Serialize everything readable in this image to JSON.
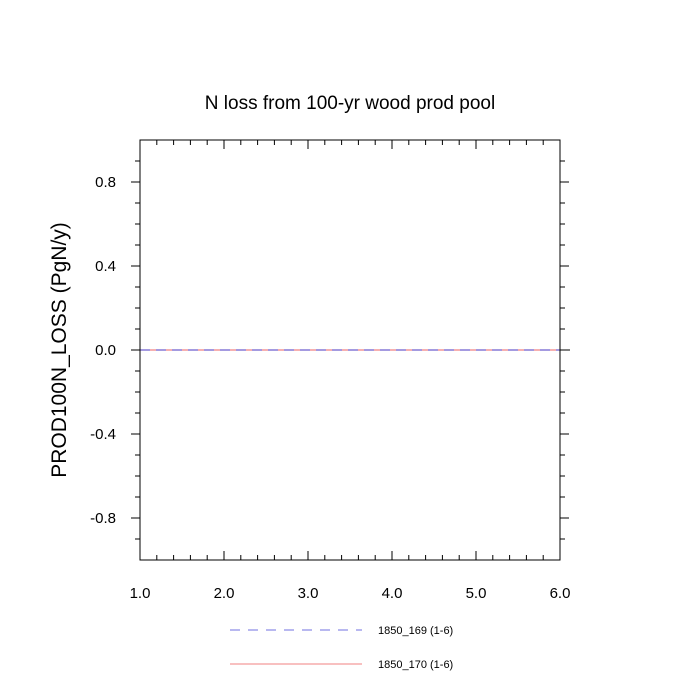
{
  "chart_data": {
    "type": "line",
    "title": "N loss from 100-yr wood prod pool",
    "xlabel": "",
    "ylabel": "PROD100N_LOSS  (PgN/y)",
    "xlim": [
      1.0,
      6.0
    ],
    "ylim": [
      -1.0,
      1.0
    ],
    "x_ticks": [
      1.0,
      2.0,
      3.0,
      4.0,
      5.0,
      6.0
    ],
    "x_tick_labels": [
      "1.0",
      "2.0",
      "3.0",
      "4.0",
      "5.0",
      "6.0"
    ],
    "y_ticks": [
      -0.8,
      -0.4,
      0.0,
      0.4,
      0.8
    ],
    "y_tick_labels": [
      "-0.8",
      "-0.4",
      "0.0",
      "0.4",
      "0.8"
    ],
    "grid": false,
    "legend_position": "bottom",
    "zero_line": true,
    "series": [
      {
        "name": "1850_169 (1-6)",
        "color": "#7070e0",
        "style": "dashed",
        "x": [
          1,
          2,
          3,
          4,
          5,
          6
        ],
        "values": [
          0,
          0,
          0,
          0,
          0,
          0
        ]
      },
      {
        "name": "1850_170 (1-6)",
        "color": "#f08080",
        "style": "solid",
        "x": [
          1,
          2,
          3,
          4,
          5,
          6
        ],
        "values": [
          0,
          0,
          0,
          0,
          0,
          0
        ]
      }
    ]
  }
}
